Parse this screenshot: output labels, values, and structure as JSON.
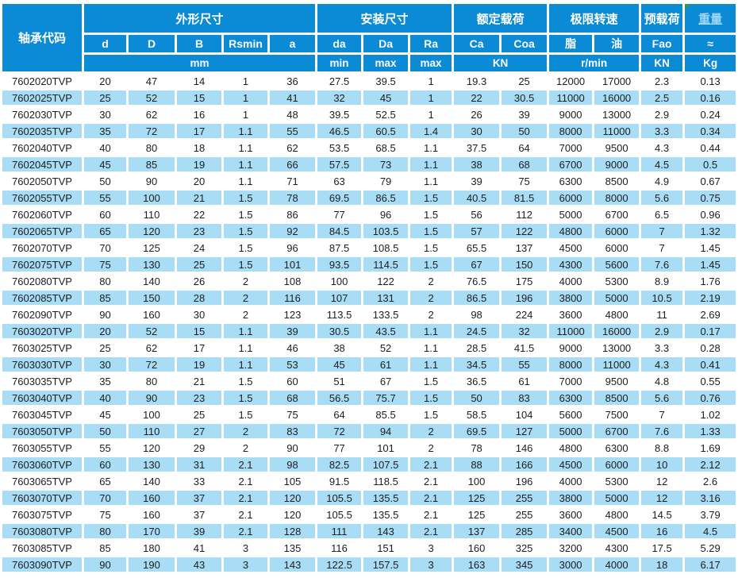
{
  "colors": {
    "header_blue": "#0b8ad5",
    "stripe_blue": "#a9ddf5",
    "text_dark": "#1d1d1d",
    "header_text": "#ffffff",
    "weight_link": "#9ed8f4",
    "marker_green": "#2f9e3c"
  },
  "header": {
    "bearing_code": "轴承代码",
    "groups": {
      "dimensions": "外形尺寸",
      "mounting": "安装尺寸",
      "rated_load": "额定载荷",
      "limit_speed": "极限转速",
      "preload": "预载荷",
      "weight": "重量"
    },
    "sub": {
      "d": "d",
      "D": "D",
      "B": "B",
      "Rsmin": "Rsmin",
      "a": "a",
      "da": "da",
      "Da": "Da",
      "Ra": "Ra",
      "Ca": "Ca",
      "Coa": "Coa",
      "grease": "脂",
      "oil": "油",
      "Fao": "Fao",
      "approx": "≈"
    },
    "units": {
      "mm": "mm",
      "min": "min",
      "max_da": "max",
      "max_ra": "max",
      "kn_load": "KN",
      "rpm": "r/min",
      "kn_preload": "KN",
      "kg": "Kg"
    }
  },
  "rows": [
    [
      "7602020TVP",
      "20",
      "47",
      "14",
      "1",
      "36",
      "27.5",
      "39.5",
      "1",
      "19.3",
      "25",
      "12000",
      "17000",
      "2.3",
      "0.13"
    ],
    [
      "7602025TVP",
      "25",
      "52",
      "15",
      "1",
      "41",
      "32",
      "45",
      "1",
      "22",
      "30.5",
      "11000",
      "16000",
      "2.5",
      "0.16"
    ],
    [
      "7602030TVP",
      "30",
      "62",
      "16",
      "1",
      "48",
      "39.5",
      "52.5",
      "1",
      "26",
      "39",
      "9000",
      "13000",
      "2.9",
      "0.24"
    ],
    [
      "7602035TVP",
      "35",
      "72",
      "17",
      "1.1",
      "55",
      "46.5",
      "60.5",
      "1.4",
      "30",
      "50",
      "8000",
      "11000",
      "3.3",
      "0.34"
    ],
    [
      "7602040TVP",
      "40",
      "80",
      "18",
      "1.1",
      "62",
      "53.5",
      "68.5",
      "1.1",
      "37.5",
      "64",
      "7000",
      "9500",
      "4.3",
      "0.44"
    ],
    [
      "7602045TVP",
      "45",
      "85",
      "19",
      "1.1",
      "66",
      "57.5",
      "73",
      "1.1",
      "38",
      "68",
      "6700",
      "9000",
      "4.5",
      "0.5"
    ],
    [
      "7602050TVP",
      "50",
      "90",
      "20",
      "1.1",
      "71",
      "63",
      "79",
      "1.1",
      "39",
      "75",
      "6300",
      "8500",
      "4.9",
      "0.67"
    ],
    [
      "7602055TVP",
      "55",
      "100",
      "21",
      "1.5",
      "78",
      "69.5",
      "86.5",
      "1.5",
      "40.5",
      "81.5",
      "6000",
      "8000",
      "5.6",
      "0.75"
    ],
    [
      "7602060TVP",
      "60",
      "110",
      "22",
      "1.5",
      "86",
      "77",
      "96",
      "1.5",
      "56",
      "112",
      "5000",
      "6700",
      "6.5",
      "0.96"
    ],
    [
      "7602065TVP",
      "65",
      "120",
      "23",
      "1.5",
      "92",
      "84.5",
      "103.5",
      "1.5",
      "57",
      "122",
      "4800",
      "6000",
      "7",
      "1.32"
    ],
    [
      "7602070TVP",
      "70",
      "125",
      "24",
      "1.5",
      "96",
      "87.5",
      "108.5",
      "1.5",
      "65.5",
      "137",
      "4500",
      "6000",
      "7",
      "1.45"
    ],
    [
      "7602075TVP",
      "75",
      "130",
      "25",
      "1.5",
      "101",
      "93.5",
      "114.5",
      "1.5",
      "67",
      "150",
      "4300",
      "5600",
      "7.6",
      "1.45"
    ],
    [
      "7602080TVP",
      "80",
      "140",
      "26",
      "2",
      "108",
      "100",
      "122",
      "2",
      "76.5",
      "175",
      "4000",
      "5300",
      "8.9",
      "1.76"
    ],
    [
      "7602085TVP",
      "85",
      "150",
      "28",
      "2",
      "116",
      "107",
      "131",
      "2",
      "86.5",
      "196",
      "3800",
      "5000",
      "10.5",
      "2.19"
    ],
    [
      "7602090TVP",
      "90",
      "160",
      "30",
      "2",
      "123",
      "113.5",
      "133.5",
      "2",
      "98",
      "224",
      "3600",
      "4800",
      "11",
      "2.69"
    ],
    [
      "7603020TVP",
      "20",
      "52",
      "15",
      "1.1",
      "39",
      "30.5",
      "43.5",
      "1.1",
      "24.5",
      "32",
      "11000",
      "16000",
      "2.9",
      "0.17"
    ],
    [
      "7603025TVP",
      "25",
      "62",
      "17",
      "1.1",
      "46",
      "38",
      "52",
      "1.1",
      "28.5",
      "41.5",
      "9000",
      "13000",
      "3.3",
      "0.28"
    ],
    [
      "7603030TVP",
      "30",
      "72",
      "19",
      "1.1",
      "53",
      "45",
      "61",
      "1.1",
      "34.5",
      "55",
      "8000",
      "11000",
      "4.3",
      "0.41"
    ],
    [
      "7603035TVP",
      "35",
      "80",
      "21",
      "1.5",
      "60",
      "51",
      "67",
      "1.5",
      "36.5",
      "61",
      "7000",
      "9500",
      "4.8",
      "0.55"
    ],
    [
      "7603040TVP",
      "40",
      "90",
      "23",
      "1.5",
      "68",
      "56.5",
      "75.7",
      "1.5",
      "50",
      "83",
      "6300",
      "8500",
      "5.6",
      "0.76"
    ],
    [
      "7603045TVP",
      "45",
      "100",
      "25",
      "1.5",
      "75",
      "64",
      "85.5",
      "1.5",
      "58.5",
      "104",
      "5600",
      "7500",
      "7",
      "1.02"
    ],
    [
      "7603050TVP",
      "50",
      "110",
      "27",
      "2",
      "83",
      "72",
      "94",
      "2",
      "69.5",
      "127",
      "5000",
      "6700",
      "7.6",
      "1.33"
    ],
    [
      "7603055TVP",
      "55",
      "120",
      "29",
      "2",
      "90",
      "77",
      "101",
      "2",
      "78",
      "146",
      "4800",
      "6300",
      "8.8",
      "1.69"
    ],
    [
      "7603060TVP",
      "60",
      "130",
      "31",
      "2.1",
      "98",
      "82.5",
      "107.5",
      "2.1",
      "88",
      "166",
      "4500",
      "6000",
      "10",
      "2.12"
    ],
    [
      "7603065TVP",
      "65",
      "140",
      "33",
      "2.1",
      "105",
      "91.5",
      "118.5",
      "2.1",
      "100",
      "196",
      "4000",
      "5300",
      "12",
      "2.6"
    ],
    [
      "7603070TVP",
      "70",
      "160",
      "37",
      "2.1",
      "120",
      "105.5",
      "135.5",
      "2.1",
      "125",
      "255",
      "3800",
      "5000",
      "12",
      "3.16"
    ],
    [
      "7603075TVP",
      "75",
      "160",
      "37",
      "2.1",
      "120",
      "105.5",
      "135.5",
      "2.1",
      "125",
      "255",
      "3600",
      "4800",
      "14.5",
      "3.79"
    ],
    [
      "7603080TVP",
      "80",
      "170",
      "39",
      "2.1",
      "128",
      "111",
      "143",
      "2.1",
      "137",
      "285",
      "3400",
      "4500",
      "16",
      "4.5"
    ],
    [
      "7603085TVP",
      "85",
      "180",
      "41",
      "3",
      "135",
      "116",
      "151",
      "3",
      "160",
      "325",
      "3200",
      "4300",
      "17.5",
      "5.29"
    ],
    [
      "7603090TVP",
      "90",
      "190",
      "43",
      "3",
      "143",
      "122.5",
      "157.5",
      "3",
      "163",
      "345",
      "3000",
      "4000",
      "18",
      "6.17"
    ]
  ]
}
